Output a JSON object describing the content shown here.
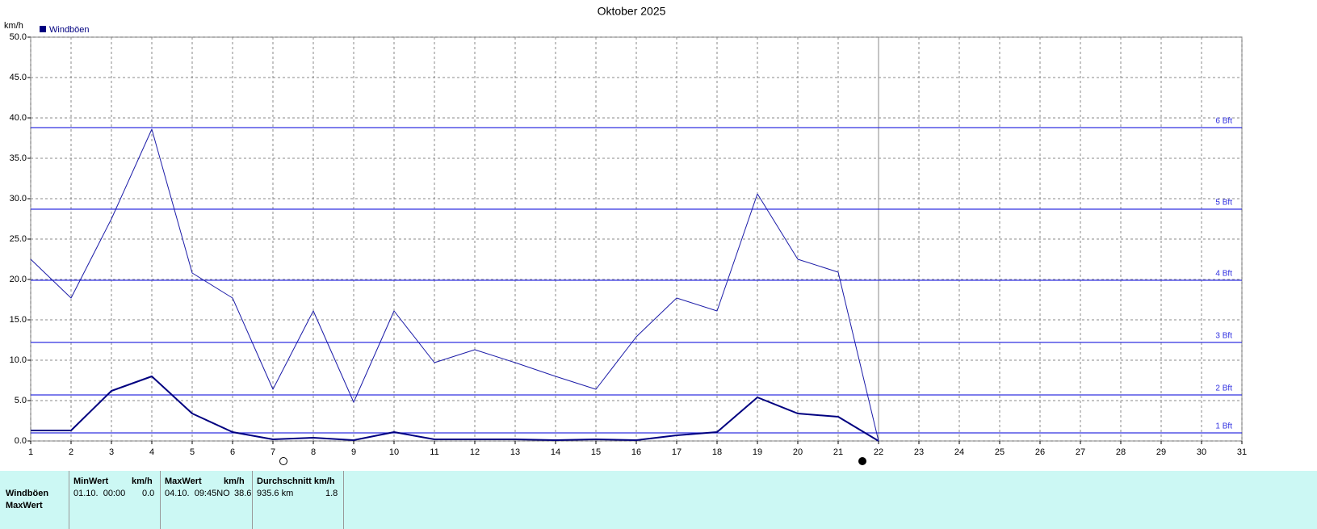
{
  "chart_data": {
    "type": "line",
    "title": "Oktober 2025",
    "y_label": "km/h",
    "x": [
      1,
      2,
      3,
      4,
      5,
      6,
      7,
      8,
      9,
      10,
      11,
      12,
      13,
      14,
      15,
      16,
      17,
      18,
      19,
      20,
      21,
      22,
      23,
      24,
      25,
      26,
      27,
      28,
      29,
      30,
      31
    ],
    "series": [
      {
        "name": "Windböen",
        "color": "#000080",
        "width": 2,
        "values": [
          1.3,
          1.3,
          6.2,
          8.0,
          3.4,
          1.1,
          0.2,
          0.4,
          0.1,
          1.1,
          0.2,
          0.2,
          0.2,
          0.1,
          0.2,
          0.1,
          0.7,
          1.1,
          5.4,
          3.4,
          3.0,
          0,
          null,
          null,
          null,
          null,
          null,
          null,
          null,
          null,
          null
        ]
      },
      {
        "color": "#1c1ca8",
        "width": 1,
        "values": [
          22.5,
          17.7,
          27.5,
          38.6,
          20.8,
          17.7,
          6.4,
          16.1,
          4.8,
          16.1,
          9.7,
          11.3,
          9.7,
          8.0,
          6.4,
          12.9,
          17.7,
          16.1,
          30.6,
          22.5,
          20.9,
          0,
          null,
          null,
          null,
          null,
          null,
          null,
          null,
          null,
          null
        ]
      }
    ],
    "xlim": [
      1,
      31
    ],
    "xticks": [
      1,
      2,
      3,
      4,
      5,
      6,
      7,
      8,
      9,
      10,
      11,
      12,
      13,
      14,
      15,
      16,
      17,
      18,
      19,
      20,
      21,
      22,
      23,
      24,
      25,
      26,
      27,
      28,
      29,
      30,
      31
    ],
    "ylim": [
      0,
      50
    ],
    "yticks": [
      {
        "value": 0,
        "label": "0.0"
      },
      {
        "value": 5,
        "label": "5.0"
      },
      {
        "value": 10,
        "label": "10.0"
      },
      {
        "value": 15,
        "label": "15.0"
      },
      {
        "value": 20,
        "label": "20.0"
      },
      {
        "value": 25,
        "label": "25.0"
      },
      {
        "value": 30,
        "label": "30.0"
      },
      {
        "value": 35,
        "label": "35.0"
      },
      {
        "value": 40,
        "label": "40.0"
      },
      {
        "value": 45,
        "label": "45.0"
      },
      {
        "value": 50,
        "label": "50.0"
      }
    ],
    "grid": true,
    "today": 22,
    "reference_lines": [
      {
        "value": 1,
        "label": "1 Bft"
      },
      {
        "value": 5.7,
        "label": "2 Bft"
      },
      {
        "value": 12.2,
        "label": "3 Bft"
      },
      {
        "value": 19.9,
        "label": "4 Bft"
      },
      {
        "value": 28.7,
        "label": "5 Bft"
      },
      {
        "value": 38.8,
        "label": "6 Bft"
      }
    ],
    "reference_color": "#3030e0"
  },
  "table": {
    "headers": [
      "MinWert",
      "km/h",
      "MaxWert",
      "km/h",
      "Durchschnitt km/h"
    ],
    "rows": [
      [
        "Windböen",
        "01.10.  00:00",
        "0.0",
        "04.10.  09:45NO",
        "38.6",
        "935.6 km",
        "1.8"
      ],
      [
        "MaxWert"
      ]
    ]
  }
}
